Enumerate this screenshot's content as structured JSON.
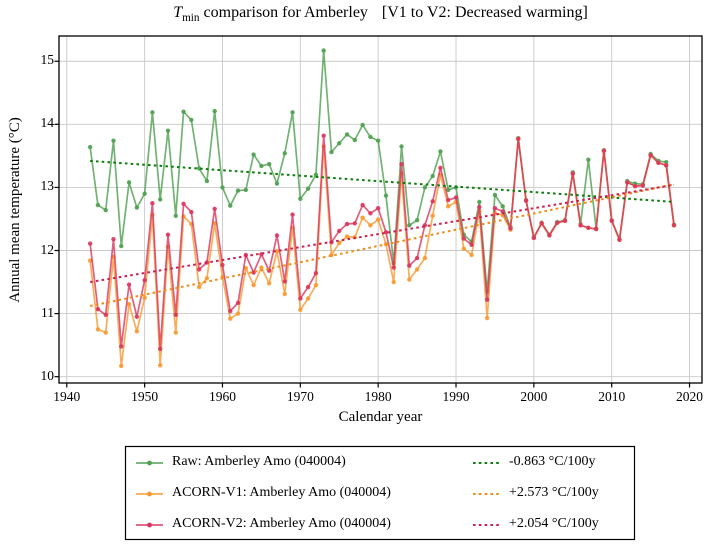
{
  "title": {
    "t_symbol": "T",
    "t_subscript": "min",
    "main": " comparison for Amberley",
    "annotation": "[V1 to V2: Decreased warming]"
  },
  "colors": {
    "raw": "#4fa050",
    "v1": "#f8992f",
    "v2": "#d9365e",
    "trend_raw": "#0d7d0d",
    "trend_v1": "#ee8c1c",
    "trend_v2": "#cc2053",
    "grid": "#c9c9c9",
    "axis": "#000000",
    "background": "#ffffff"
  },
  "chart_data": {
    "type": "line",
    "title": "Tmin comparison for Amberley [V1 to V2: Decreased warming]",
    "xlabel": "Calendar year",
    "ylabel": "Annual mean temperature (°C)",
    "xlim": [
      1939.0,
      2021.6
    ],
    "ylim": [
      9.9,
      15.4
    ],
    "x_ticks": [
      1940,
      1950,
      1960,
      1970,
      1980,
      1990,
      2000,
      2010,
      2020
    ],
    "y_ticks": [
      10,
      11,
      12,
      13,
      14,
      15
    ],
    "grid": true,
    "legend_position": "below",
    "x": [
      1943,
      1944,
      1945,
      1946,
      1947,
      1948,
      1949,
      1950,
      1951,
      1952,
      1953,
      1954,
      1955,
      1956,
      1957,
      1958,
      1959,
      1960,
      1961,
      1962,
      1963,
      1964,
      1965,
      1966,
      1967,
      1968,
      1969,
      1970,
      1971,
      1972,
      1973,
      1974,
      1975,
      1976,
      1977,
      1978,
      1979,
      1980,
      1981,
      1982,
      1983,
      1984,
      1985,
      1986,
      1987,
      1988,
      1989,
      1990,
      1991,
      1992,
      1993,
      1994,
      1995,
      1996,
      1997,
      1998,
      1999,
      2000,
      2001,
      2002,
      2003,
      2004,
      2005,
      2006,
      2007,
      2008,
      2009,
      2010,
      2011,
      2012,
      2013,
      2014,
      2015,
      2016,
      2017,
      2018
    ],
    "series": [
      {
        "id": "raw",
        "name": "Raw: Amberley Amo (040004)",
        "color_key": "raw",
        "values": [
          13.64,
          12.72,
          12.64,
          13.74,
          12.07,
          13.08,
          12.68,
          12.9,
          14.19,
          12.81,
          13.9,
          12.55,
          14.2,
          14.07,
          13.3,
          13.1,
          14.21,
          13.0,
          12.71,
          12.95,
          12.96,
          13.52,
          13.34,
          13.37,
          13.06,
          13.54,
          14.19,
          12.82,
          12.98,
          13.2,
          15.17,
          13.56,
          13.7,
          13.84,
          13.75,
          13.99,
          13.8,
          13.74,
          12.87,
          11.8,
          13.65,
          12.4,
          12.48,
          13.0,
          13.18,
          13.57,
          12.96,
          13.0,
          12.25,
          12.14,
          12.77,
          11.35,
          12.88,
          12.7,
          12.37,
          13.78,
          12.8,
          12.21,
          12.44,
          12.25,
          12.45,
          12.48,
          13.24,
          12.42,
          13.44,
          12.35,
          13.59,
          12.48,
          12.18,
          13.1,
          13.06,
          13.05,
          13.53,
          13.42,
          13.4,
          12.41
        ]
      },
      {
        "id": "acorn_v1",
        "name": "ACORN-V1: Amberley Amo (040004)",
        "color_key": "v1",
        "values": [
          11.84,
          10.75,
          10.7,
          11.9,
          10.17,
          11.15,
          10.72,
          11.25,
          12.56,
          10.18,
          12.06,
          10.7,
          12.54,
          12.42,
          11.42,
          11.56,
          12.43,
          11.58,
          10.92,
          11.0,
          11.72,
          11.45,
          11.73,
          11.48,
          11.99,
          11.31,
          12.36,
          11.06,
          11.24,
          11.45,
          13.65,
          11.93,
          12.12,
          12.22,
          12.21,
          12.52,
          12.4,
          12.49,
          12.1,
          11.5,
          13.22,
          11.54,
          11.7,
          11.88,
          12.55,
          13.2,
          12.7,
          12.77,
          12.03,
          11.93,
          12.62,
          10.93,
          12.59,
          12.56,
          12.33,
          13.77,
          12.79,
          12.2,
          12.43,
          12.24,
          12.44,
          12.47,
          13.22,
          12.4,
          12.36,
          12.34,
          13.58,
          12.47,
          12.17,
          13.08,
          13.02,
          13.03,
          13.51,
          13.39,
          13.35,
          12.4
        ]
      },
      {
        "id": "acorn_v2",
        "name": "ACORN-V2: Amberley Amo (040004)",
        "color_key": "v2",
        "values": [
          12.11,
          11.07,
          10.98,
          12.18,
          10.48,
          11.46,
          10.95,
          11.53,
          12.75,
          10.44,
          12.25,
          10.98,
          12.74,
          12.61,
          11.7,
          11.81,
          12.66,
          11.77,
          11.04,
          11.17,
          11.93,
          11.65,
          11.94,
          11.68,
          12.24,
          11.51,
          12.57,
          11.24,
          11.42,
          11.64,
          13.82,
          12.13,
          12.31,
          12.42,
          12.43,
          12.72,
          12.59,
          12.67,
          12.29,
          11.73,
          13.37,
          11.76,
          11.88,
          12.4,
          12.78,
          13.31,
          12.8,
          12.84,
          12.19,
          12.09,
          12.69,
          11.22,
          12.67,
          12.62,
          12.35,
          13.77,
          12.79,
          12.2,
          12.43,
          12.24,
          12.44,
          12.47,
          13.22,
          12.4,
          12.36,
          12.34,
          13.58,
          12.47,
          12.17,
          13.08,
          13.02,
          13.03,
          13.51,
          13.39,
          13.35,
          12.4
        ]
      }
    ],
    "trends": [
      {
        "id": "trend_raw",
        "label": "-0.863 °C/100y",
        "color_key": "trend_raw",
        "x0": 1943,
        "y0": 13.42,
        "x1": 2018,
        "y1": 12.77
      },
      {
        "id": "trend_v1",
        "label": "+2.573 °C/100y",
        "color_key": "trend_v1",
        "x0": 1943,
        "y0": 11.12,
        "x1": 2018,
        "y1": 13.05
      },
      {
        "id": "trend_v2",
        "label": "+2.054 °C/100y",
        "color_key": "trend_v2",
        "x0": 1943,
        "y0": 11.5,
        "x1": 2018,
        "y1": 13.04
      }
    ]
  }
}
